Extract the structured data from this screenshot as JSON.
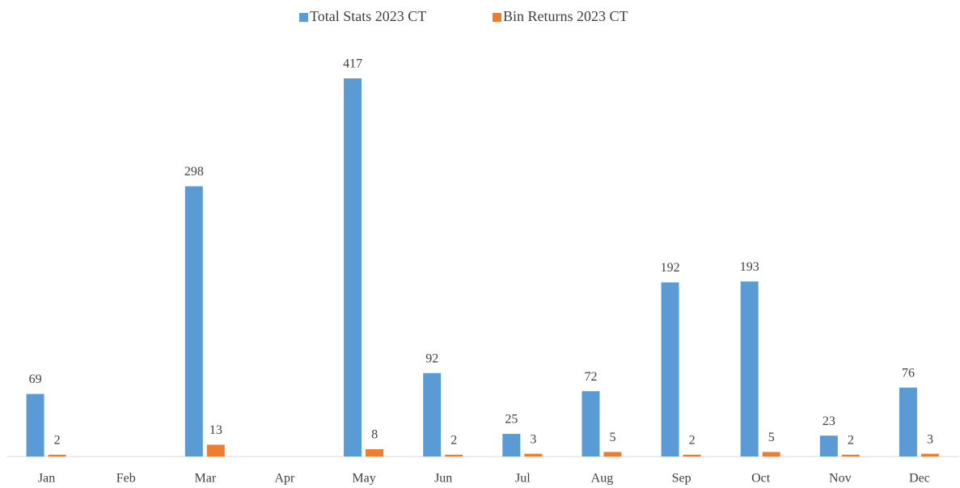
{
  "chart_data": {
    "type": "bar",
    "categories": [
      "Jan",
      "Feb",
      "Mar",
      "Apr",
      "May",
      "Jun",
      "Jul",
      "Aug",
      "Sep",
      "Oct",
      "Nov",
      "Dec"
    ],
    "series": [
      {
        "name": "Total Stats 2023 CT",
        "color": "#5b9bd5",
        "values": [
          69,
          null,
          298,
          null,
          417,
          92,
          25,
          72,
          192,
          193,
          23,
          76
        ]
      },
      {
        "name": "Bin Returns 2023 CT",
        "color": "#ed7d31",
        "values": [
          2,
          null,
          13,
          null,
          8,
          2,
          3,
          5,
          2,
          5,
          2,
          3
        ]
      }
    ],
    "legend": "top",
    "grid": false
  }
}
